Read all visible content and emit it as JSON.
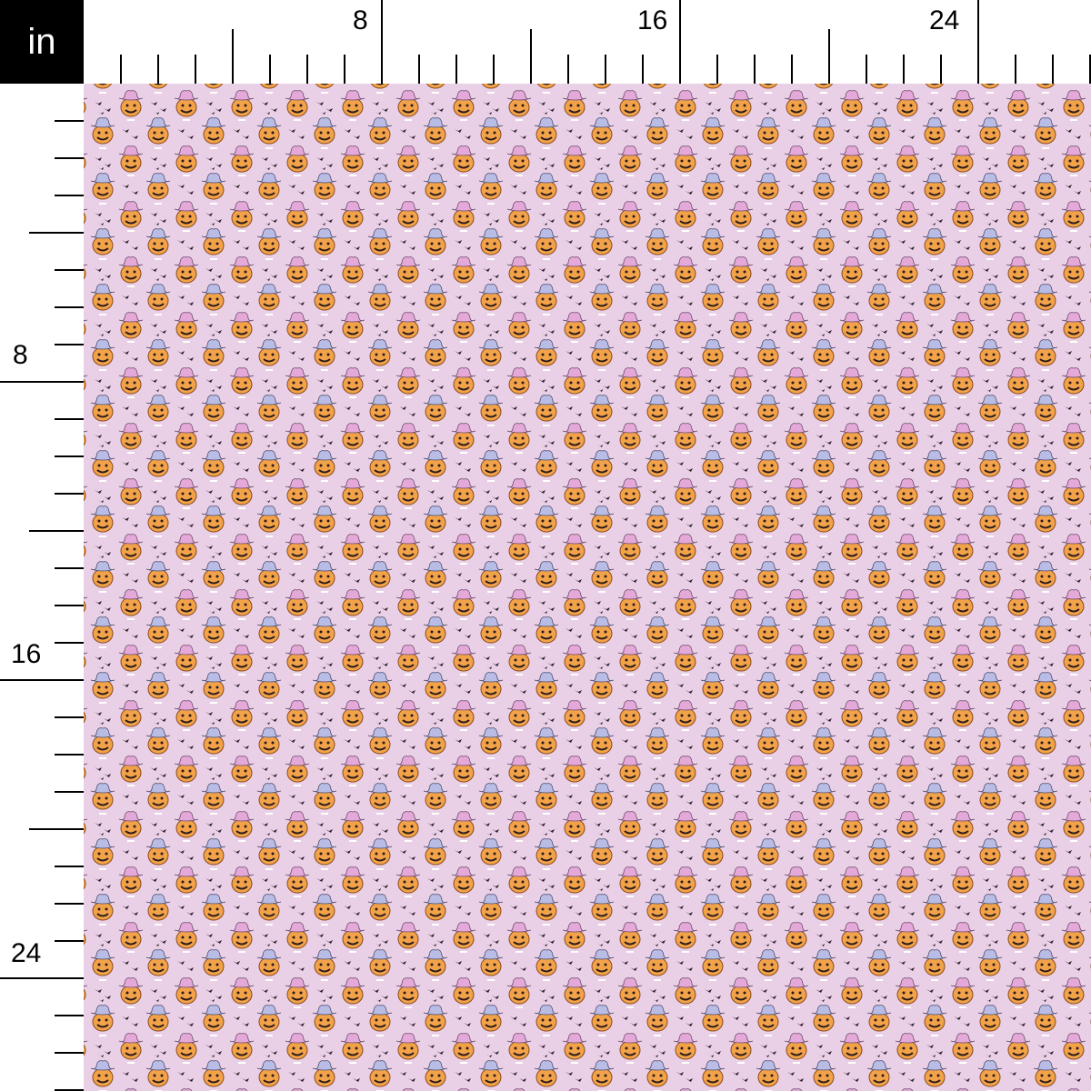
{
  "ruler": {
    "unit": "in",
    "labels": [
      "8",
      "16",
      "24"
    ],
    "px_per_unit_note": ""
  },
  "fabric": {
    "background_color": "#ead0e6",
    "motifs": [
      "pumpkin-pink-cowboy-hat",
      "pumpkin-blue-cowboy-hat",
      "bats"
    ],
    "colors": {
      "pumpkin": "#f2a34a",
      "hat_pink": "#e4a9d8",
      "hat_blue": "#b9bde6",
      "bat": "#2a1f2a"
    }
  }
}
